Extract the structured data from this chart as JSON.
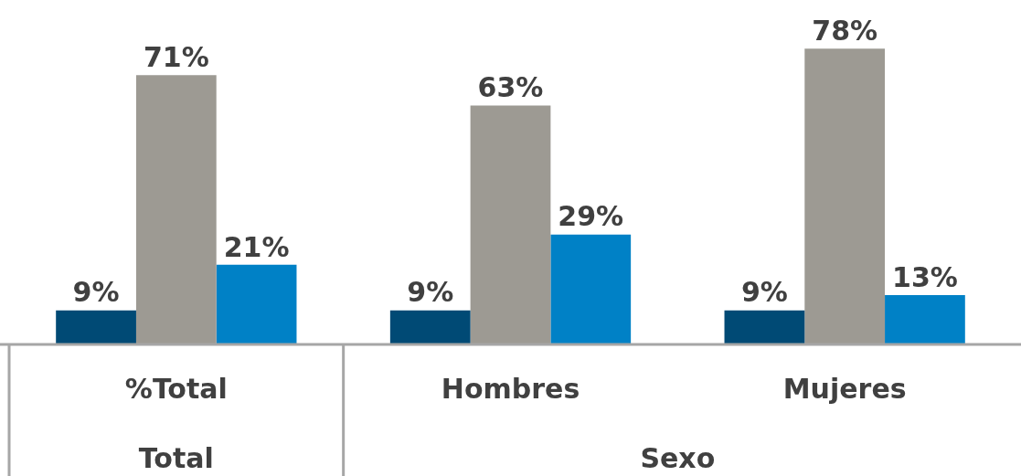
{
  "chart_data": {
    "type": "bar",
    "categories": [
      "%Total",
      "Hombres",
      "Mujeres"
    ],
    "series": [
      {
        "color": "#004a75",
        "values": [
          9,
          9,
          9
        ],
        "value_labels": [
          "9%",
          "9%",
          "9%"
        ]
      },
      {
        "color": "#9d9a93",
        "values": [
          71,
          63,
          78
        ],
        "value_labels": [
          "71%",
          "63%",
          "78%"
        ]
      },
      {
        "color": "#0081c6",
        "values": [
          21,
          29,
          13
        ],
        "value_labels": [
          "21%",
          "29%",
          "13%"
        ]
      }
    ],
    "annotations": [
      "Total",
      "Sexo"
    ],
    "grid": false,
    "legend": false
  }
}
